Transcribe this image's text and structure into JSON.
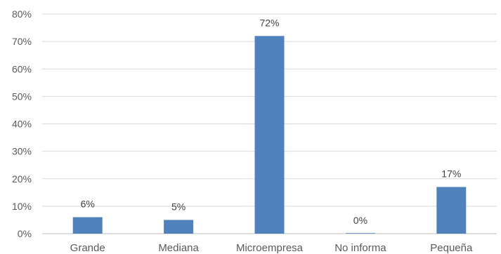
{
  "chart_data": {
    "type": "bar",
    "categories": [
      "Grande",
      "Mediana",
      "Microempresa",
      "No informa",
      "Pequeña"
    ],
    "values": [
      6,
      5,
      72,
      0,
      17
    ],
    "data_labels": [
      "6%",
      "5%",
      "72%",
      "0%",
      "17%"
    ],
    "y_ticks": [
      0,
      10,
      20,
      30,
      40,
      50,
      60,
      70,
      80
    ],
    "y_tick_labels": [
      "0%",
      "10%",
      "20%",
      "30%",
      "40%",
      "50%",
      "60%",
      "70%",
      "80%"
    ],
    "ylim": [
      0,
      80
    ],
    "grid": true,
    "legend": "none",
    "bar_color": "#4f81bd"
  }
}
